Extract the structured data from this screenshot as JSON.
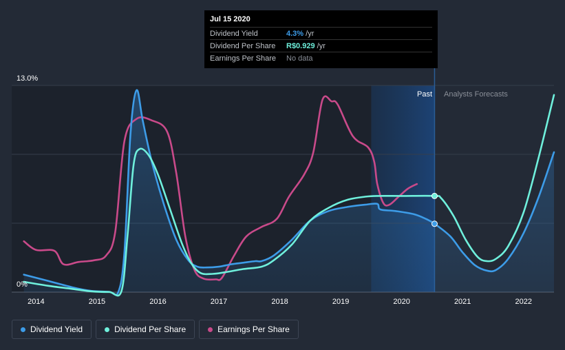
{
  "tooltip": {
    "date": "Jul 15 2020",
    "rows": [
      {
        "label": "Dividend Yield",
        "value": "4.3%",
        "suffix": " /yr",
        "color": "#3d9ce8"
      },
      {
        "label": "Dividend Per Share",
        "value": "R$0.929",
        "suffix": " /yr",
        "color": "#6ff0dc"
      },
      {
        "label": "Earnings Per Share",
        "value": "No data",
        "suffix": "",
        "color": "#8a8f98"
      }
    ]
  },
  "regions": {
    "past": "Past",
    "forecast": "Analysts Forecasts"
  },
  "legend": [
    {
      "label": "Dividend Yield",
      "color": "#3d9ce8"
    },
    {
      "label": "Dividend Per Share",
      "color": "#6ff0dc"
    },
    {
      "label": "Earnings Per Share",
      "color": "#c94a8a"
    }
  ],
  "chart_data": {
    "type": "line",
    "title": "",
    "xlabel": "",
    "ylabel": "",
    "ytick_labels": [
      "13.0%",
      "0%"
    ],
    "ylim": [
      0,
      13.0
    ],
    "xlim": [
      2013.6,
      2022.5
    ],
    "x_ticks": [
      "2014",
      "2015",
      "2016",
      "2017",
      "2018",
      "2019",
      "2020",
      "2021",
      "2022"
    ],
    "highlight_start": 2019.5,
    "cursor_x": 2020.54,
    "series": [
      {
        "name": "Dividend Yield",
        "color": "#3d9ce8",
        "points": [
          [
            2013.8,
            1.1
          ],
          [
            2014.2,
            0.7
          ],
          [
            2014.6,
            0.3
          ],
          [
            2014.9,
            0.08
          ],
          [
            2015.2,
            0.02
          ],
          [
            2015.35,
            0.0
          ],
          [
            2015.45,
            2.5
          ],
          [
            2015.55,
            10.0
          ],
          [
            2015.65,
            12.7
          ],
          [
            2015.75,
            10.8
          ],
          [
            2015.9,
            8.2
          ],
          [
            2016.1,
            5.5
          ],
          [
            2016.3,
            3.3
          ],
          [
            2016.5,
            2.0
          ],
          [
            2016.65,
            1.6
          ],
          [
            2016.8,
            1.55
          ],
          [
            2017.0,
            1.6
          ],
          [
            2017.2,
            1.75
          ],
          [
            2017.4,
            1.85
          ],
          [
            2017.6,
            1.95
          ],
          [
            2017.7,
            1.95
          ],
          [
            2017.9,
            2.3
          ],
          [
            2018.2,
            3.3
          ],
          [
            2018.5,
            4.5
          ],
          [
            2018.8,
            5.1
          ],
          [
            2019.1,
            5.35
          ],
          [
            2019.4,
            5.5
          ],
          [
            2019.6,
            5.55
          ],
          [
            2019.65,
            5.2
          ],
          [
            2019.9,
            5.1
          ],
          [
            2020.2,
            4.9
          ],
          [
            2020.4,
            4.6
          ],
          [
            2020.54,
            4.3
          ],
          [
            2020.8,
            3.5
          ],
          [
            2021.0,
            2.5
          ],
          [
            2021.2,
            1.7
          ],
          [
            2021.4,
            1.35
          ],
          [
            2021.55,
            1.4
          ],
          [
            2021.75,
            2.1
          ],
          [
            2022.0,
            3.7
          ],
          [
            2022.25,
            6.0
          ],
          [
            2022.5,
            8.8
          ]
        ]
      },
      {
        "name": "Dividend Per Share",
        "color": "#6ff0dc",
        "points": [
          [
            2013.8,
            0.65
          ],
          [
            2014.2,
            0.4
          ],
          [
            2014.6,
            0.2
          ],
          [
            2014.9,
            0.05
          ],
          [
            2015.2,
            0.01
          ],
          [
            2015.4,
            0.05
          ],
          [
            2015.5,
            3.5
          ],
          [
            2015.6,
            8.0
          ],
          [
            2015.7,
            9.0
          ],
          [
            2015.85,
            8.6
          ],
          [
            2016.0,
            7.4
          ],
          [
            2016.2,
            5.2
          ],
          [
            2016.4,
            3.0
          ],
          [
            2016.55,
            1.8
          ],
          [
            2016.7,
            1.2
          ],
          [
            2016.9,
            1.15
          ],
          [
            2017.1,
            1.25
          ],
          [
            2017.4,
            1.45
          ],
          [
            2017.7,
            1.6
          ],
          [
            2017.9,
            2.0
          ],
          [
            2018.2,
            3.0
          ],
          [
            2018.5,
            4.5
          ],
          [
            2018.8,
            5.3
          ],
          [
            2019.1,
            5.8
          ],
          [
            2019.4,
            6.0
          ],
          [
            2019.6,
            6.05
          ],
          [
            2020.0,
            6.05
          ],
          [
            2020.54,
            6.05
          ],
          [
            2020.65,
            5.9
          ],
          [
            2020.85,
            4.8
          ],
          [
            2021.05,
            3.3
          ],
          [
            2021.25,
            2.2
          ],
          [
            2021.4,
            1.95
          ],
          [
            2021.55,
            2.1
          ],
          [
            2021.75,
            2.9
          ],
          [
            2022.0,
            5.0
          ],
          [
            2022.25,
            8.5
          ],
          [
            2022.5,
            12.4
          ]
        ]
      },
      {
        "name": "Earnings Per Share",
        "color": "#c94a8a",
        "points": [
          [
            2013.8,
            3.2
          ],
          [
            2014.0,
            2.65
          ],
          [
            2014.3,
            2.6
          ],
          [
            2014.45,
            1.75
          ],
          [
            2014.7,
            1.9
          ],
          [
            2014.95,
            2.0
          ],
          [
            2015.15,
            2.3
          ],
          [
            2015.3,
            3.8
          ],
          [
            2015.45,
            9.5
          ],
          [
            2015.65,
            10.9
          ],
          [
            2015.9,
            10.8
          ],
          [
            2016.15,
            10.1
          ],
          [
            2016.3,
            7.5
          ],
          [
            2016.45,
            3.5
          ],
          [
            2016.6,
            1.4
          ],
          [
            2016.75,
            0.85
          ],
          [
            2016.95,
            0.8
          ],
          [
            2017.05,
            0.9
          ],
          [
            2017.25,
            2.3
          ],
          [
            2017.45,
            3.5
          ],
          [
            2017.7,
            4.1
          ],
          [
            2017.95,
            4.6
          ],
          [
            2018.15,
            6.0
          ],
          [
            2018.4,
            7.4
          ],
          [
            2018.55,
            8.8
          ],
          [
            2018.7,
            12.1
          ],
          [
            2018.85,
            12.0
          ],
          [
            2018.95,
            11.8
          ],
          [
            2019.2,
            9.8
          ],
          [
            2019.45,
            9.1
          ],
          [
            2019.55,
            8.2
          ],
          [
            2019.6,
            6.8
          ],
          [
            2019.7,
            5.6
          ],
          [
            2019.8,
            5.5
          ],
          [
            2019.95,
            6.0
          ],
          [
            2020.1,
            6.5
          ],
          [
            2020.25,
            6.8
          ]
        ]
      }
    ]
  }
}
